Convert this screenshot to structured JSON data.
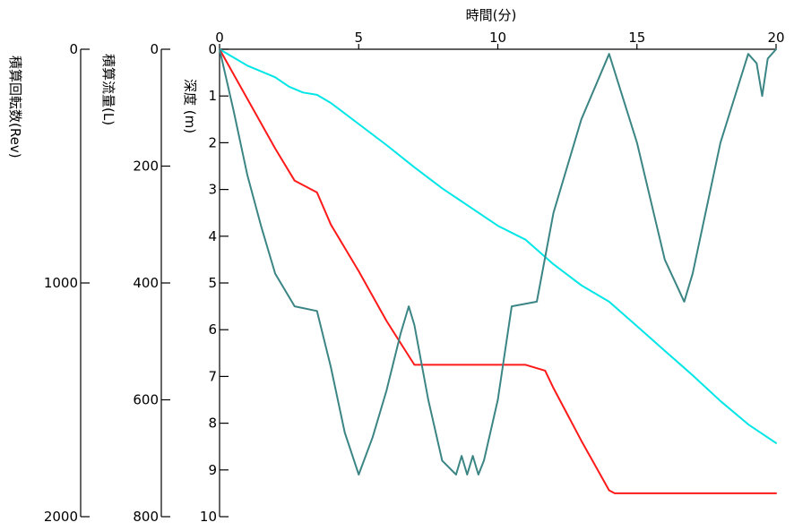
{
  "chart_data": {
    "type": "line",
    "xlabel": "時間(分)",
    "xlim": [
      0,
      20
    ],
    "x_ticks": [
      "0",
      "5",
      "10",
      "15",
      "20"
    ],
    "axes": [
      {
        "id": "depth",
        "label": "深度 (m)",
        "ylim": [
          0,
          10
        ],
        "ticks": [
          "0",
          "1",
          "2",
          "3",
          "4",
          "5",
          "6",
          "7",
          "8",
          "9",
          "10"
        ]
      },
      {
        "id": "flow",
        "label": "積算流量(L)",
        "ylim": [
          0,
          800
        ],
        "ticks": [
          "0",
          "200",
          "400",
          "600",
          "800"
        ]
      },
      {
        "id": "rev",
        "label": "積算回転数(Rev)",
        "ylim": [
          0,
          2000
        ],
        "ticks": [
          "0",
          "1000",
          "2000"
        ]
      }
    ],
    "series": [
      {
        "axis": "rev",
        "color": "#00e6e6",
        "x": [
          0,
          0.5,
          1,
          1.5,
          2,
          2.5,
          3,
          3.5,
          4,
          5,
          6,
          7,
          8,
          9,
          10,
          11,
          12,
          13,
          14,
          15,
          16,
          17,
          18,
          19,
          20
        ],
        "y": [
          0,
          35,
          70,
          95,
          120,
          160,
          185,
          195,
          230,
          320,
          410,
          505,
          595,
          675,
          755,
          815,
          920,
          1010,
          1080,
          1185,
          1290,
          1395,
          1505,
          1605,
          1685
        ]
      },
      {
        "axis": "flow",
        "color": "#ff1a1a",
        "x": [
          0,
          1,
          2,
          2.7,
          3.5,
          4,
          5,
          6,
          7,
          8,
          9,
          10,
          11,
          11.7,
          12,
          13,
          14,
          14.2,
          16,
          18,
          20
        ],
        "y": [
          0,
          85,
          170,
          225,
          245,
          300,
          380,
          465,
          540,
          540,
          540,
          540,
          540,
          550,
          580,
          670,
          755,
          760,
          760,
          760,
          760
        ]
      },
      {
        "axis": "depth",
        "color": "#3c8585",
        "x": [
          0,
          0.5,
          1,
          1.5,
          2,
          2.7,
          3.5,
          4,
          4.5,
          5,
          5.5,
          6,
          6.5,
          6.8,
          7,
          7.5,
          8,
          8.5,
          8.7,
          8.9,
          9.1,
          9.3,
          9.5,
          10,
          10.5,
          11.4,
          12,
          13,
          14,
          15,
          16,
          16.7,
          17,
          18,
          19,
          19.3,
          19.5,
          19.7,
          20
        ],
        "y": [
          0,
          1.3,
          2.7,
          3.8,
          4.8,
          5.5,
          5.6,
          6.8,
          8.2,
          9.1,
          8.3,
          7.3,
          6.1,
          5.5,
          5.9,
          7.5,
          8.8,
          9.1,
          8.7,
          9.1,
          8.7,
          9.1,
          8.8,
          7.5,
          5.5,
          5.4,
          3.5,
          1.5,
          0.1,
          2.0,
          4.5,
          5.4,
          4.8,
          2.0,
          0.1,
          0.3,
          1.0,
          0.2,
          0
        ]
      }
    ]
  }
}
